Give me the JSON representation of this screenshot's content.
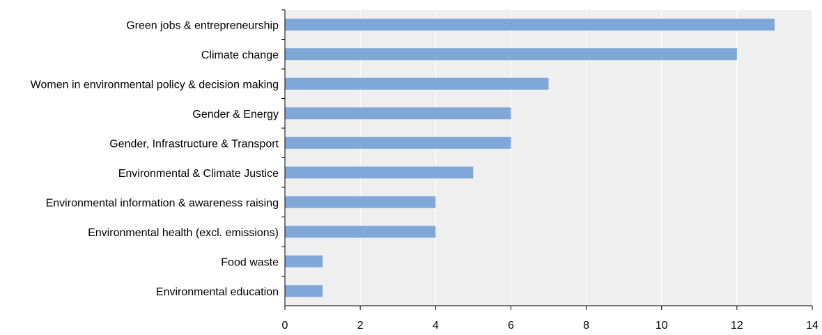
{
  "chart_data": {
    "type": "bar",
    "orientation": "horizontal",
    "categories": [
      "Green jobs & entrepreneurship",
      "Climate change",
      "Women in environmental policy & decision making",
      "Gender & Energy",
      "Gender, Infrastructure & Transport",
      "Environmental & Climate Justice",
      "Environmental information & awareness raising",
      "Environmental health (excl. emissions)",
      "Food waste",
      "Environmental education"
    ],
    "values": [
      13,
      12,
      7,
      6,
      6,
      5,
      4,
      4,
      1,
      1
    ],
    "xlim": [
      0,
      14
    ],
    "xticks": [
      "0",
      "2",
      "4",
      "6",
      "8",
      "10",
      "12",
      "14"
    ],
    "grid": true,
    "colors": {
      "bar": "#7fa8d9",
      "plot_bg": "#efefef",
      "grid": "#ffffff",
      "axis": "#000000"
    }
  }
}
